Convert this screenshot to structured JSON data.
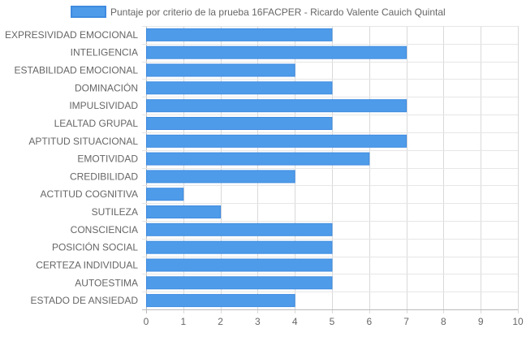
{
  "chart_data": {
    "type": "bar",
    "orientation": "horizontal",
    "categories": [
      "EXPRESIVIDAD EMOCIONAL",
      "INTELIGENCIA",
      "ESTABILIDAD EMOCIONAL",
      "DOMINACIÓN",
      "IMPULSIVIDAD",
      "LEALTAD GRUPAL",
      "APTITUD SITUACIONAL",
      "EMOTIVIDAD",
      "CREDIBILIDAD",
      "ACTITUD COGNITIVA",
      "SUTILEZA",
      "CONSCIENCIA",
      "POSICIÓN SOCIAL",
      "CERTEZA INDIVIDUAL",
      "AUTOESTIMA",
      "ESTADO DE ANSIEDAD"
    ],
    "series": [
      {
        "name": "Puntaje por criterio de la prueba 16FACPER - Ricardo Valente Cauich Quintal",
        "values": [
          5,
          7,
          4,
          5,
          7,
          5,
          7,
          6,
          4,
          1,
          2,
          5,
          5,
          5,
          5,
          4
        ],
        "color": "#4e9be9",
        "border_color": "#3f8be0"
      }
    ],
    "xlim": [
      0,
      10
    ],
    "x_ticks": [
      "0",
      "1",
      "2",
      "3",
      "4",
      "5",
      "6",
      "7",
      "8",
      "9",
      "10"
    ],
    "grid": true,
    "legend_position": "top"
  }
}
